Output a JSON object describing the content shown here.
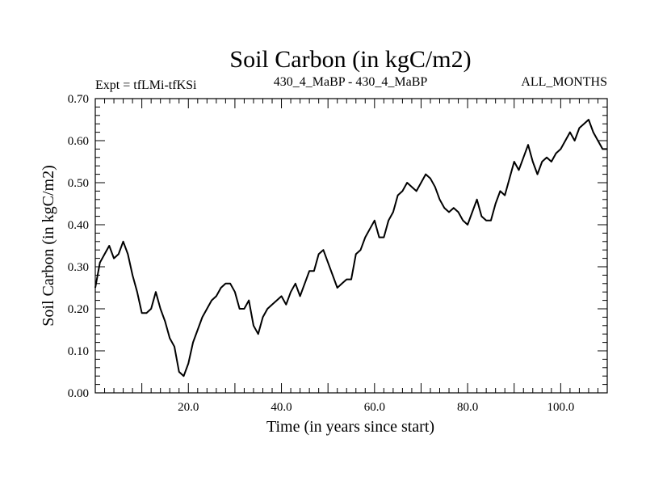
{
  "chart_data": {
    "type": "line",
    "title": "Soil Carbon (in kgC/m2)",
    "subtitle_left": "Expt = tfLMi-tfKSi",
    "subtitle_center": "430_4_MaBP - 430_4_MaBP",
    "subtitle_right": "ALL_MONTHS",
    "xlabel": "Time (in years since start)",
    "ylabel": "Soil Carbon (in kgC/m2)",
    "xlim": [
      0,
      110
    ],
    "ylim": [
      0,
      0.7
    ],
    "xticks": [
      20,
      40,
      60,
      80,
      100
    ],
    "xtick_labels": [
      "20.0",
      "40.0",
      "60.0",
      "80.0",
      "100.0"
    ],
    "yticks": [
      0,
      0.1,
      0.2,
      0.3,
      0.4,
      0.5,
      0.6,
      0.7
    ],
    "ytick_labels": [
      "0.00",
      "0.10",
      "0.20",
      "0.30",
      "0.40",
      "0.50",
      "0.60",
      "0.70"
    ],
    "grid": false,
    "series": [
      {
        "name": "Soil Carbon",
        "color": "#000000",
        "x": [
          0,
          1,
          2,
          3,
          4,
          5,
          6,
          7,
          8,
          9,
          10,
          11,
          12,
          13,
          14,
          15,
          16,
          17,
          18,
          19,
          20,
          21,
          22,
          23,
          24,
          25,
          26,
          27,
          28,
          29,
          30,
          31,
          32,
          33,
          34,
          35,
          36,
          37,
          38,
          39,
          40,
          41,
          42,
          43,
          44,
          45,
          46,
          47,
          48,
          49,
          50,
          51,
          52,
          53,
          54,
          55,
          56,
          57,
          58,
          59,
          60,
          61,
          62,
          63,
          64,
          65,
          66,
          67,
          68,
          69,
          70,
          71,
          72,
          73,
          74,
          75,
          76,
          77,
          78,
          79,
          80,
          81,
          82,
          83,
          84,
          85,
          86,
          87,
          88,
          89,
          90,
          91,
          92,
          93,
          94,
          95,
          96,
          97,
          98,
          99,
          100,
          101,
          102,
          103,
          104,
          105,
          106,
          107,
          108,
          109,
          110
        ],
        "values": [
          0.25,
          0.31,
          0.33,
          0.35,
          0.32,
          0.33,
          0.36,
          0.33,
          0.28,
          0.24,
          0.19,
          0.19,
          0.2,
          0.24,
          0.2,
          0.17,
          0.13,
          0.11,
          0.05,
          0.04,
          0.07,
          0.12,
          0.15,
          0.18,
          0.2,
          0.22,
          0.23,
          0.25,
          0.26,
          0.26,
          0.24,
          0.2,
          0.2,
          0.22,
          0.16,
          0.14,
          0.18,
          0.2,
          0.21,
          0.22,
          0.23,
          0.21,
          0.24,
          0.26,
          0.23,
          0.26,
          0.29,
          0.29,
          0.33,
          0.34,
          0.31,
          0.28,
          0.25,
          0.26,
          0.27,
          0.27,
          0.33,
          0.34,
          0.37,
          0.39,
          0.41,
          0.37,
          0.37,
          0.41,
          0.43,
          0.47,
          0.48,
          0.5,
          0.49,
          0.48,
          0.5,
          0.52,
          0.51,
          0.49,
          0.46,
          0.44,
          0.43,
          0.44,
          0.43,
          0.41,
          0.4,
          0.43,
          0.46,
          0.42,
          0.41,
          0.41,
          0.45,
          0.48,
          0.47,
          0.51,
          0.55,
          0.53,
          0.56,
          0.59,
          0.55,
          0.52,
          0.55,
          0.56,
          0.55,
          0.57,
          0.58,
          0.6,
          0.62,
          0.6,
          0.63,
          0.64,
          0.65,
          0.62,
          0.6,
          0.58,
          0.58
        ]
      }
    ]
  }
}
